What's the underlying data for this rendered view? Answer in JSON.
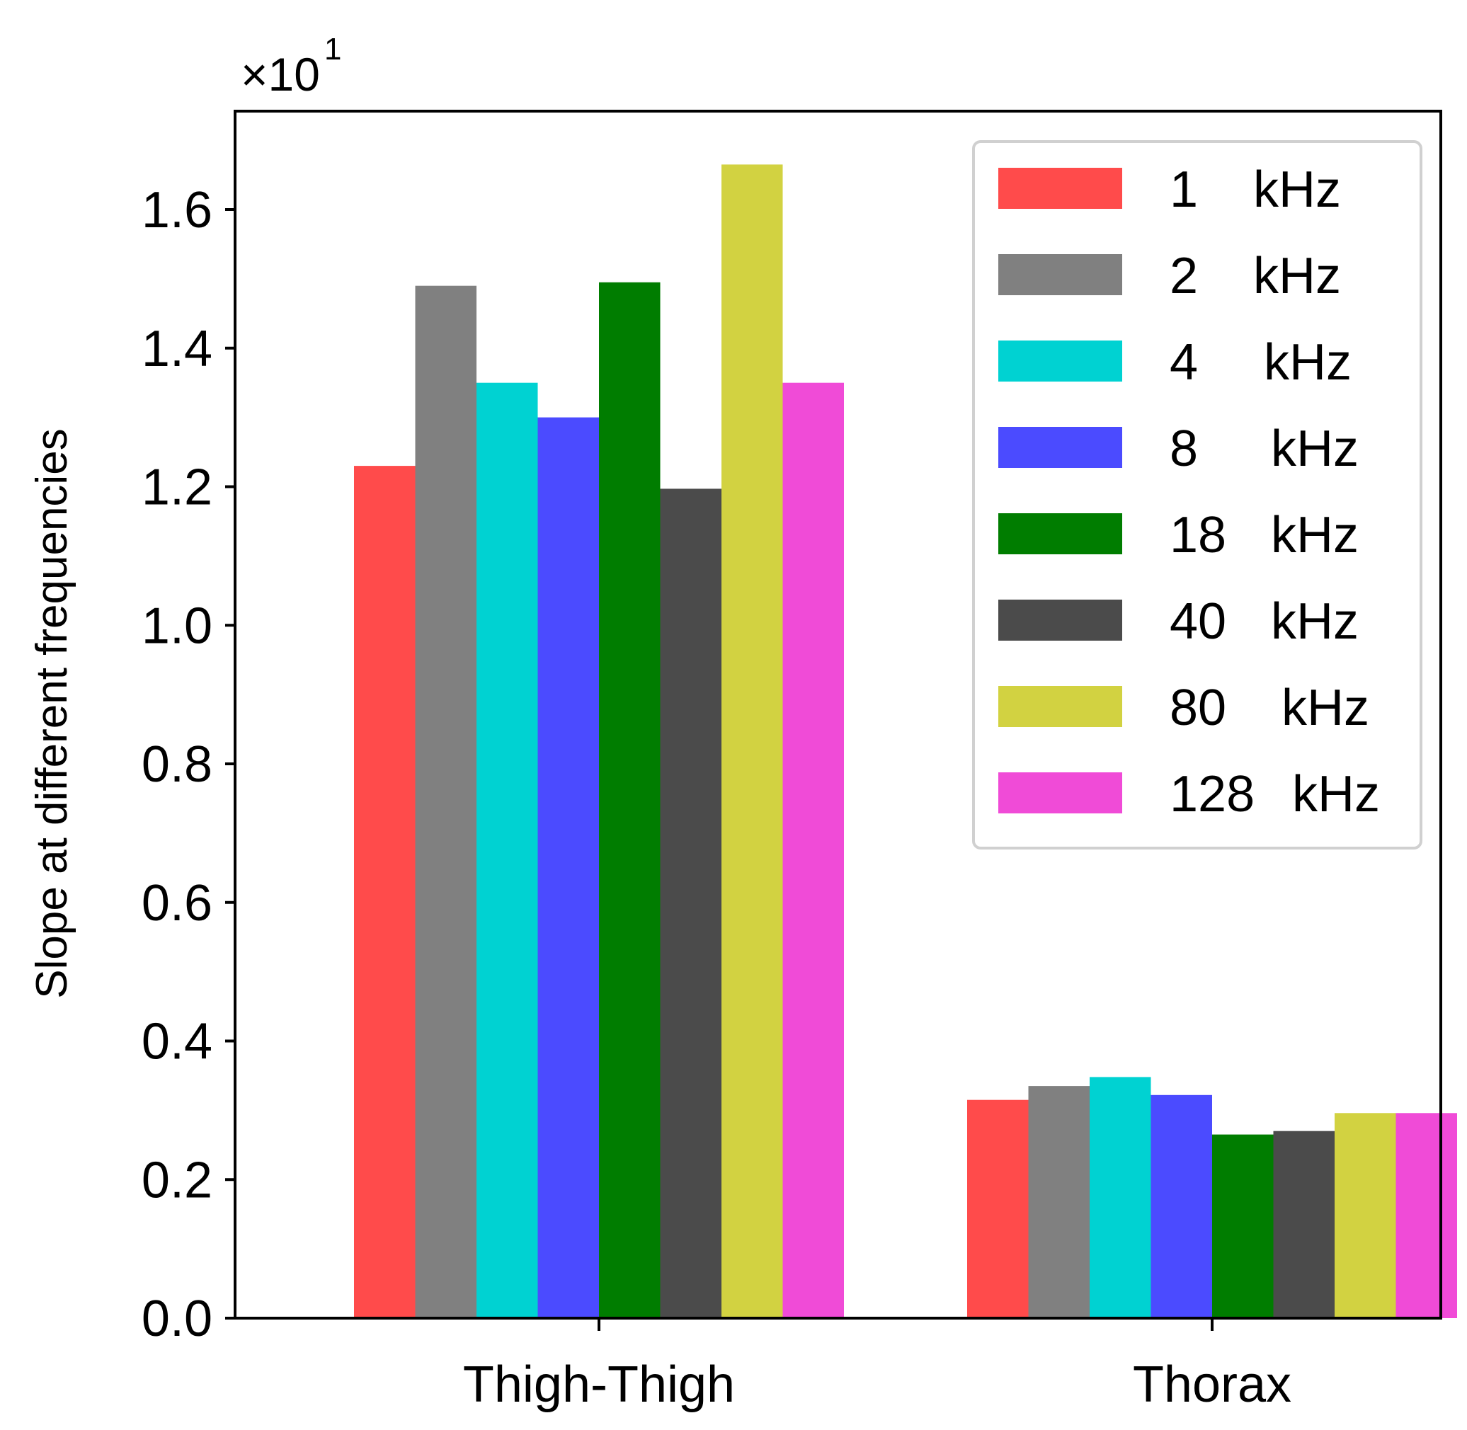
{
  "chart_data": {
    "type": "bar",
    "title": "",
    "xlabel": "",
    "ylabel": "Slope at different frequencies",
    "offset_text": {
      "base": "×10",
      "exponent": "1"
    },
    "ylim": [
      0,
      1.76
    ],
    "yticks": [
      0.0,
      0.2,
      0.4,
      0.6,
      0.8,
      1.0,
      1.2,
      1.4,
      1.6
    ],
    "ytick_labels": [
      "0.0",
      "0.2",
      "0.4",
      "0.6",
      "0.8",
      "1.0",
      "1.2",
      "1.4",
      "1.6"
    ],
    "categories": [
      "Thigh-Thigh",
      "Thorax"
    ],
    "grid": false,
    "legend_position": "top-right",
    "series": [
      {
        "name": "1 kHz",
        "legend_num": "1",
        "legend_unit": "kHz",
        "color": "#ff4b4b",
        "values": [
          1.23,
          0.315
        ]
      },
      {
        "name": "2 kHz",
        "legend_num": "2",
        "legend_unit": "kHz",
        "color": "#808080",
        "values": [
          1.49,
          0.335
        ]
      },
      {
        "name": "4 kHz",
        "legend_num": "4",
        "legend_unit": "kHz",
        "color": "#00d2d2",
        "values": [
          1.35,
          0.348
        ]
      },
      {
        "name": "8 kHz",
        "legend_num": "8",
        "legend_unit": "kHz",
        "color": "#4b4bff",
        "values": [
          1.3,
          0.322
        ]
      },
      {
        "name": "18 kHz",
        "legend_num": "18",
        "legend_unit": "kHz",
        "color": "#007d00",
        "values": [
          1.495,
          0.265
        ]
      },
      {
        "name": "40 kHz",
        "legend_num": "40",
        "legend_unit": "kHz",
        "color": "#4b4b4b",
        "values": [
          1.197,
          0.27
        ]
      },
      {
        "name": "80 kHz",
        "legend_num": "80",
        "legend_unit": "kHz",
        "color": "#d2d241",
        "values": [
          1.665,
          0.296
        ]
      },
      {
        "name": "128 kHz",
        "legend_num": "128",
        "legend_unit": "kHz",
        "color": "#f04bd7",
        "values": [
          1.35,
          0.296
        ]
      }
    ]
  }
}
